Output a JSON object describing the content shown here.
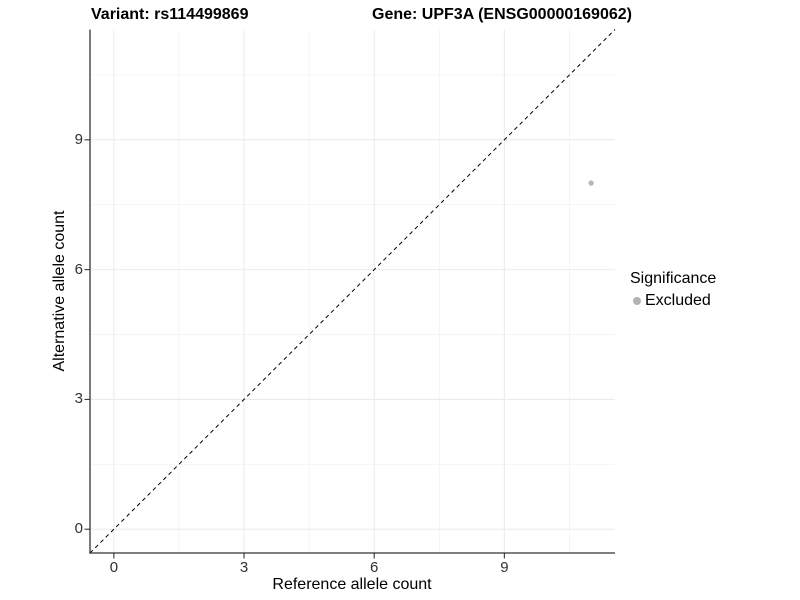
{
  "title": {
    "variant": "Variant: rs114499869",
    "gene": "Gene: UPF3A (ENSG00000169062)"
  },
  "chart_data": {
    "type": "scatter",
    "title": "Variant: rs114499869   Gene: UPF3A (ENSG00000169062)",
    "xlabel": "Reference allele count",
    "ylabel": "Alternative allele count",
    "xlim": [
      0,
      11
    ],
    "ylim": [
      0,
      11
    ],
    "x_ticks": [
      0,
      3,
      6,
      9
    ],
    "y_ticks": [
      0,
      3,
      6,
      9
    ],
    "x_minor_ticks": [
      1.5,
      4.5,
      7.5,
      10.5
    ],
    "y_minor_ticks": [
      1.5,
      4.5,
      7.5,
      10.5
    ],
    "grid": true,
    "reference_line": {
      "kind": "identity",
      "equation": "y = x",
      "style": "dashed",
      "color": "#000000"
    },
    "series": [
      {
        "name": "Excluded",
        "color": "#b9b9b9",
        "points": [
          {
            "x": 11,
            "y": 8
          }
        ]
      }
    ],
    "legend": {
      "title": "Significance",
      "position": "right",
      "items": [
        {
          "label": "Excluded",
          "color": "#b3b3b3"
        }
      ]
    },
    "colors": {
      "axis_line": "#333333",
      "tick_mark": "#333333",
      "grid_major": "#ebebeb",
      "grid_minor": "#f1f1f1",
      "tick_label": "#303030"
    }
  }
}
